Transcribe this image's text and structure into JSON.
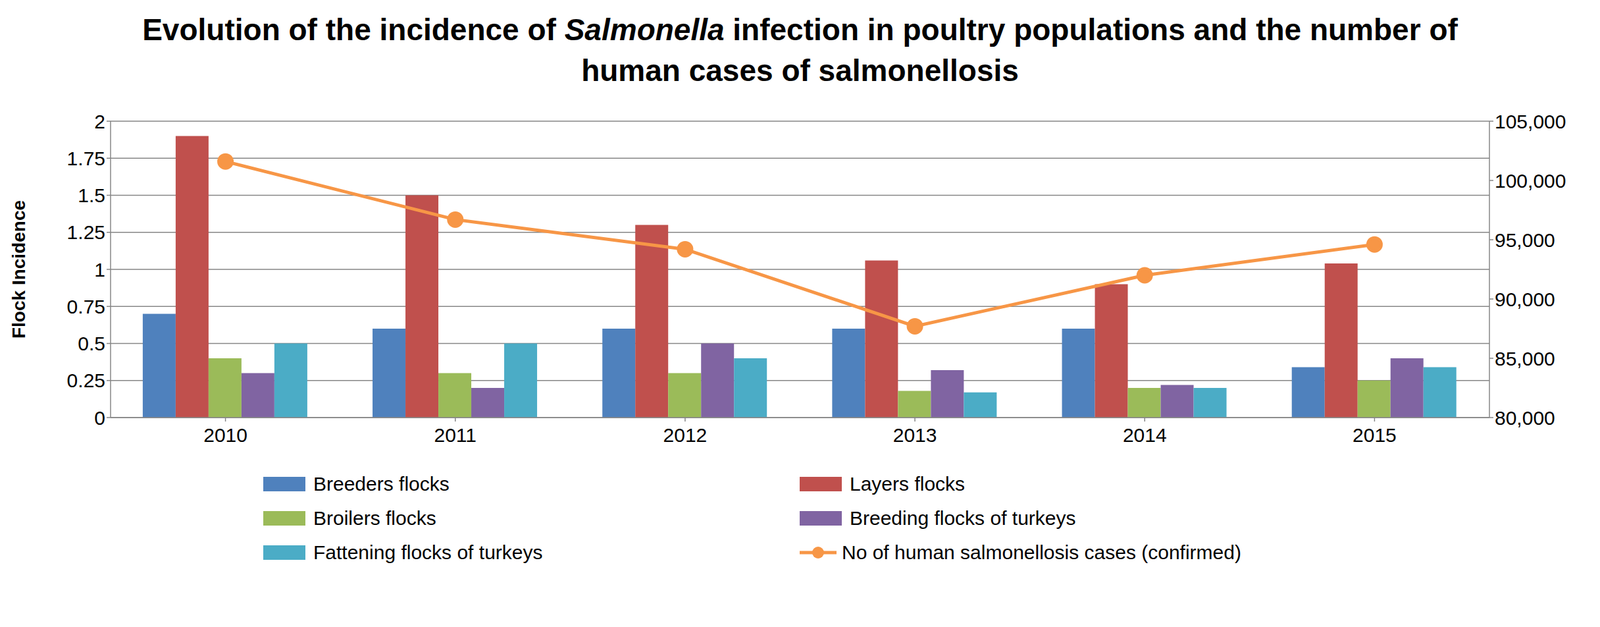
{
  "chart_data": {
    "type": "bar",
    "title": "Evolution of the incidence of Salmonella infection in poultry populations and the number of human cases of salmonellosis",
    "ylabel": "Flock Incidence",
    "categories": [
      "2010",
      "2011",
      "2012",
      "2013",
      "2014",
      "2015"
    ],
    "series": [
      {
        "name": "Breeders flocks",
        "type": "bar",
        "color": "#4F81BD",
        "values": [
          0.7,
          0.6,
          0.6,
          0.6,
          0.6,
          0.34
        ]
      },
      {
        "name": "Layers flocks",
        "type": "bar",
        "color": "#C0504D",
        "values": [
          1.9,
          1.5,
          1.3,
          1.06,
          0.9,
          1.04
        ]
      },
      {
        "name": "Broilers flocks",
        "type": "bar",
        "color": "#9BBB59",
        "values": [
          0.4,
          0.3,
          0.3,
          0.18,
          0.2,
          0.25
        ]
      },
      {
        "name": "Breeding flocks of turkeys",
        "type": "bar",
        "color": "#8064A2",
        "values": [
          0.3,
          0.2,
          0.5,
          0.32,
          0.22,
          0.4
        ]
      },
      {
        "name": "Fattening flocks of turkeys",
        "type": "bar",
        "color": "#4BACC6",
        "values": [
          0.5,
          0.5,
          0.4,
          0.17,
          0.2,
          0.34
        ]
      },
      {
        "name": "No of human salmonellosis cases (confirmed)",
        "type": "line",
        "axis": "y2",
        "marker": "circle",
        "color": "#F79646",
        "values": [
          101600,
          96700,
          94200,
          87700,
          92000,
          94600
        ]
      }
    ],
    "ylim": [
      0,
      2
    ],
    "yticks": [
      0,
      0.25,
      0.5,
      0.75,
      1,
      1.25,
      1.5,
      1.75,
      2
    ],
    "y2lim": [
      80000,
      105000
    ],
    "y2ticks": [
      {
        "value": 80000,
        "label": "80,000"
      },
      {
        "value": 85000,
        "label": "85,000"
      },
      {
        "value": 90000,
        "label": "90,000"
      },
      {
        "value": 95000,
        "label": "95,000"
      },
      {
        "value": 100000,
        "label": "100,000"
      },
      {
        "value": 105000,
        "label": "105,000"
      }
    ],
    "grid": true,
    "legend": "bottom"
  }
}
